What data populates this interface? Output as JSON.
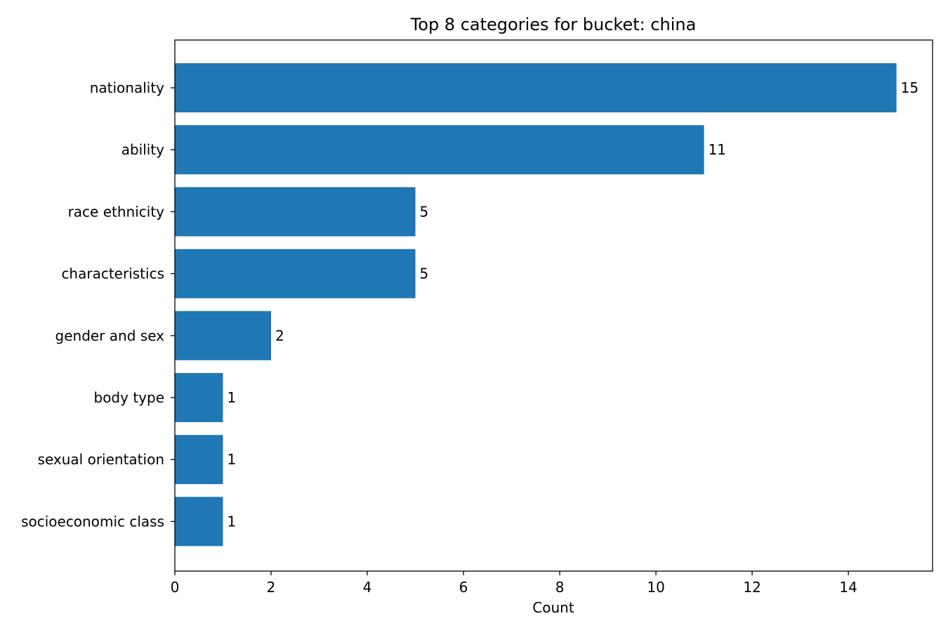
{
  "chart_data": {
    "type": "bar",
    "orientation": "horizontal",
    "title": "Top 8 categories for bucket: china",
    "xlabel": "Count",
    "ylabel": "",
    "categories": [
      "nationality",
      "ability",
      "race ethnicity",
      "characteristics",
      "gender and sex",
      "body type",
      "sexual orientation",
      "socioeconomic class"
    ],
    "values": [
      15,
      11,
      5,
      5,
      2,
      1,
      1,
      1
    ],
    "data_labels": [
      "15",
      "11",
      "5",
      "5",
      "2",
      "1",
      "1",
      "1"
    ],
    "xlim": [
      0,
      15.75
    ],
    "xticks": [
      0,
      2,
      4,
      6,
      8,
      10,
      12,
      14
    ],
    "xtick_labels": [
      "0",
      "2",
      "4",
      "6",
      "8",
      "10",
      "12",
      "14"
    ],
    "grid": false,
    "legend": "none",
    "bar_color": "#1f77b4"
  }
}
